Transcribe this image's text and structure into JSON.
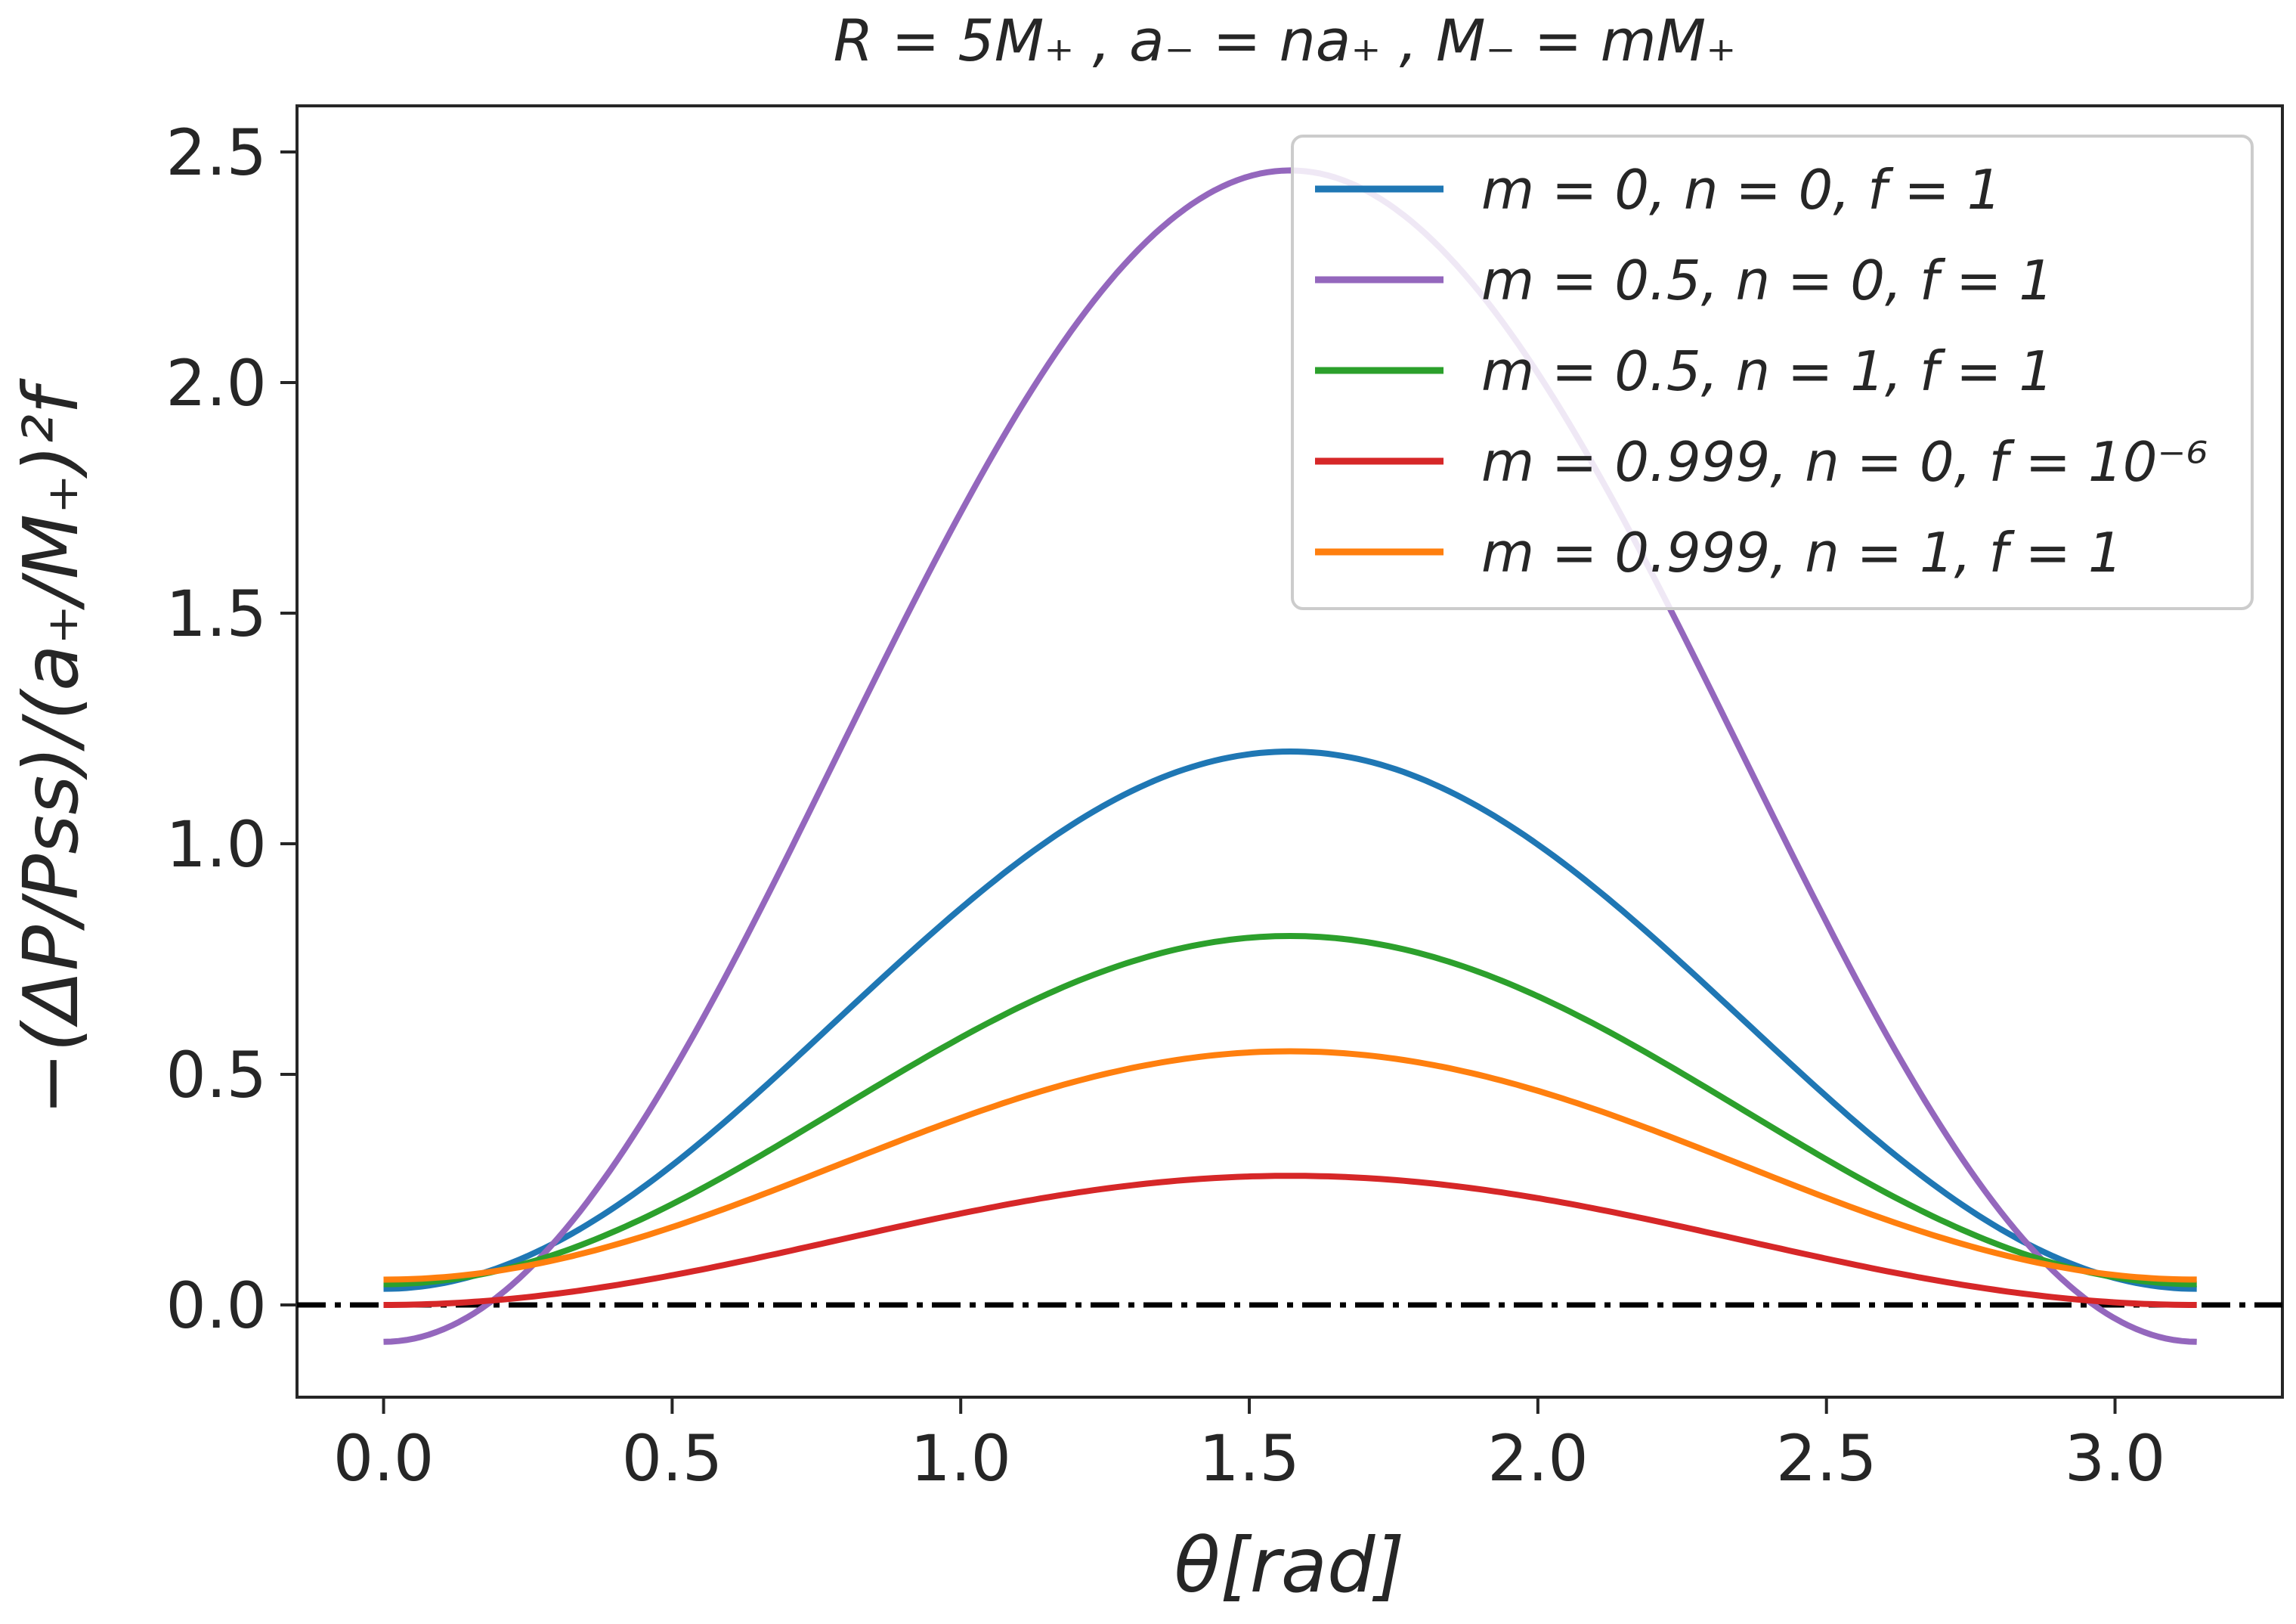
{
  "chart_data": {
    "type": "line",
    "title": "R = 5M₊ , a₋ = na₊ , M₋ = mM₊",
    "xlabel": "θ[rad]",
    "ylabel": "−(ΔP/Pss)/(a₊/M₊)²f",
    "xlim": [
      -0.15,
      3.29
    ],
    "ylim": [
      -0.2,
      2.6
    ],
    "xticks": [
      0.0,
      0.5,
      1.0,
      1.5,
      2.0,
      2.5,
      3.0
    ],
    "xtick_labels": [
      "0.0",
      "0.5",
      "1.0",
      "1.5",
      "2.0",
      "2.5",
      "3.0"
    ],
    "yticks": [
      0.0,
      0.5,
      1.0,
      1.5,
      2.0,
      2.5
    ],
    "ytick_labels": [
      "0.0",
      "0.5",
      "1.0",
      "1.5",
      "2.0",
      "2.5"
    ],
    "x_range": [
      0,
      3.1416
    ],
    "legend_position": "top-right",
    "grid": false,
    "reference_line": {
      "y": 0.0,
      "style": "dash-dot",
      "color": "#000000"
    },
    "series": [
      {
        "name": "m = 0, n = 0, f = 1",
        "color": "#1f77b4",
        "peak_x": 1.5708,
        "peak": 1.2,
        "edge": 0.035,
        "shape": "sin2"
      },
      {
        "name": "m = 0.5, n = 0, f = 1",
        "color": "#9467bd",
        "peak_x": 1.5708,
        "peak": 2.46,
        "edge": -0.08,
        "shape": "sin2"
      },
      {
        "name": "m = 0.5, n = 1, f = 1",
        "color": "#2ca02c",
        "peak_x": 1.5708,
        "peak": 0.8,
        "edge": 0.045,
        "shape": "sin2"
      },
      {
        "name": "m = 0.999, n = 0, f = 10⁻⁶",
        "color": "#d62728",
        "peak_x": 1.5708,
        "peak": 0.28,
        "edge": 0.0,
        "shape": "sin2"
      },
      {
        "name": "m = 0.999, n = 1, f = 1",
        "color": "#ff7f0e",
        "peak_x": 1.5708,
        "peak": 0.55,
        "edge": 0.055,
        "shape": "sin2"
      }
    ]
  }
}
